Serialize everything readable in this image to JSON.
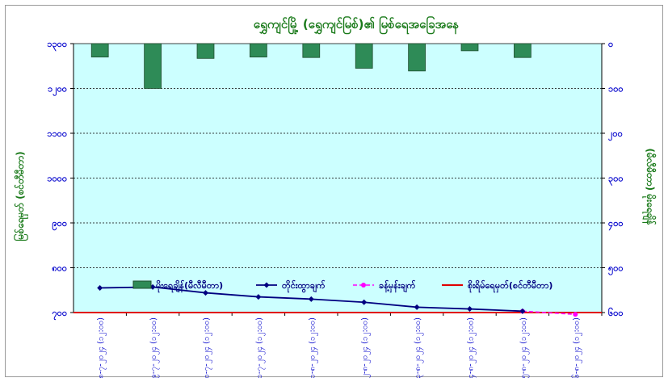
{
  "chart_data": {
    "type": "bar+line",
    "title": "ရွှေကျင်မြို့ (ရွှေကျင်မြစ်)၏ မြစ်ရေအခြေအနေ",
    "ylabel_left": "မြစ်ရေမှတ် (စင်တီမီတာ)",
    "ylabel_right": "(မီလီမီတာ) မိုးရေချိန်",
    "left_axis": {
      "min": 700,
      "max": 1300,
      "step": 100,
      "ticks": [
        "၁၃၀၀",
        "၁၂၀၀",
        "၁၁၀၀",
        "၁၀၀၀",
        "၉၀၀",
        "၈၀၀",
        "၇၀၀"
      ]
    },
    "right_axis": {
      "min": 0,
      "max": 600,
      "step": 100,
      "inverted": true,
      "ticks": [
        "၀",
        "၁၀၀",
        "၂၀၀",
        "၃၀၀",
        "၄၀၀",
        "၅၀၀",
        "၆၀၀"
      ]
    },
    "categories": [
      "၂၈-၇-၂၀၂၄ (၁၂:၀၀)",
      "၂၉-၇-၂၀၂၄ (၁၂:၀၀)",
      "၃၀-၇-၂၀၂၄ (၁၂:၀၀)",
      "၃၁-၇-၂၀၂၄ (၁၂:၀၀)",
      "၁-၈-၂၀၂၄ (၁၂:၀၀)",
      "၂-၈-၂၀၂၄ (၁၂:၀၀)",
      "၃-၈-၂၀၂၄ (၁၂:၀၀)",
      "၄-၈-၂၀၂၄ (၁၂:၀၀)",
      "၅-၈-၂၀၂၄ (၁၂:၀၀)",
      "၆-၈-၂၀၂၄ (၁၂:၀၀)"
    ],
    "series": [
      {
        "name": "မိုးရေချိန်(မီလီမီတာ)",
        "kind": "bar",
        "axis": "right",
        "color": "#2e8b57",
        "values": [
          30,
          100,
          33,
          30,
          31,
          55,
          61,
          16,
          31,
          null
        ]
      },
      {
        "name": "တိုင်းထွာချက်",
        "kind": "line",
        "axis": "left",
        "color": "#000080",
        "values": [
          755,
          757,
          744,
          735,
          730,
          723,
          712,
          708,
          703,
          null
        ]
      },
      {
        "name": "ခန့်မှန်းချက်",
        "kind": "dashed-line",
        "axis": "left",
        "color": "#ff00ff",
        "values": [
          null,
          null,
          null,
          null,
          null,
          null,
          null,
          null,
          703,
          696
        ]
      },
      {
        "name": "စိုးရိမ်ရေမှတ်(စင်တီမီတာ)",
        "kind": "hline",
        "axis": "left",
        "color": "#e00000",
        "value": 700
      }
    ],
    "grid": true,
    "legend": "bottom"
  },
  "colors": {
    "plot_bg": "#ccffff",
    "axis_text": "#0000cc",
    "title": "#1a7a1a",
    "gridline": "#000000"
  }
}
